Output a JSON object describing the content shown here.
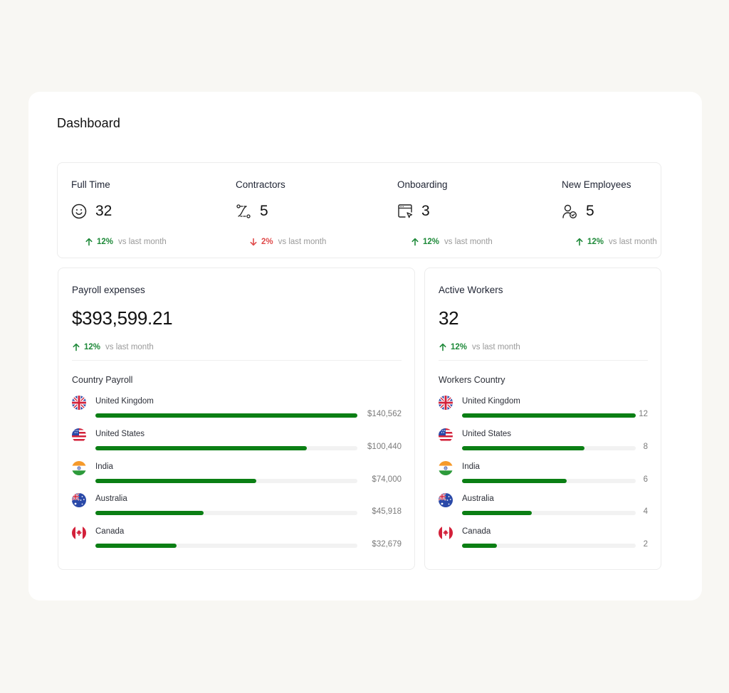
{
  "page": {
    "title": "Dashboard"
  },
  "colors": {
    "accent_green": "#0b7f14",
    "trend_up": "#1f8a3a",
    "trend_down": "#e04b4b",
    "page_bg": "#f8f7f3"
  },
  "stats": [
    {
      "label": "Full Time",
      "icon": "smiley-face-icon",
      "value": "32",
      "trend": {
        "direction": "up",
        "pct": "12%",
        "text": "vs last month"
      }
    },
    {
      "label": "Contractors",
      "icon": "route-path-icon",
      "value": "5",
      "trend": {
        "direction": "down",
        "pct": "2%",
        "text": "vs last month"
      }
    },
    {
      "label": "Onboarding",
      "icon": "browser-cursor-icon",
      "value": "3",
      "trend": {
        "direction": "up",
        "pct": "12%",
        "text": "vs last month"
      }
    },
    {
      "label": "New Employees",
      "icon": "user-check-icon",
      "value": "5",
      "trend": {
        "direction": "up",
        "pct": "12%",
        "text": "vs last month"
      }
    }
  ],
  "payroll": {
    "title": "Payroll expenses",
    "total": "$393,599.21",
    "trend": {
      "direction": "up",
      "pct": "12%",
      "text": "vs last month"
    },
    "section_title": "Country Payroll",
    "countries": [
      {
        "name": "United Kingdom",
        "flag": "uk-flag-icon",
        "value": "$140,562",
        "pct": 100
      },
      {
        "name": "United States",
        "flag": "us-flag-icon",
        "value": "$100,440",
        "pct": 80.7
      },
      {
        "name": "India",
        "flag": "india-flag-icon",
        "value": "$74,000",
        "pct": 61.4
      },
      {
        "name": "Australia",
        "flag": "australia-flag-icon",
        "value": "$45,918",
        "pct": 41.3
      },
      {
        "name": "Canada",
        "flag": "canada-flag-icon",
        "value": "$32,679",
        "pct": 31.0
      }
    ]
  },
  "workers": {
    "title": "Active Workers",
    "total": "32",
    "trend": {
      "direction": "up",
      "pct": "12%",
      "text": "vs last month"
    },
    "section_title": "Workers Country",
    "countries": [
      {
        "name": "United Kingdom",
        "flag": "uk-flag-icon",
        "value": "12",
        "pct": 100
      },
      {
        "name": "United States",
        "flag": "us-flag-icon",
        "value": "8",
        "pct": 70.5
      },
      {
        "name": "India",
        "flag": "india-flag-icon",
        "value": "6",
        "pct": 60.2
      },
      {
        "name": "Australia",
        "flag": "australia-flag-icon",
        "value": "4",
        "pct": 40.2
      },
      {
        "name": "Canada",
        "flag": "canada-flag-icon",
        "value": "2",
        "pct": 20.1
      }
    ]
  }
}
